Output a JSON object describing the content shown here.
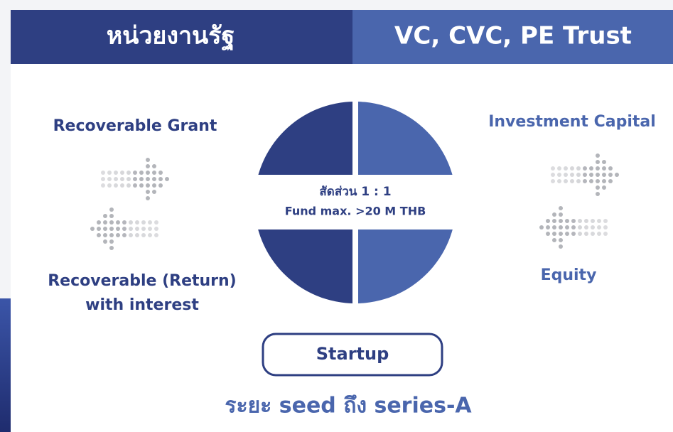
{
  "header": {
    "left": "หน่วยงานรัฐ",
    "right": "VC, CVC, PE Trust"
  },
  "left": {
    "top": "Recoverable Grant",
    "bottom": [
      "Recoverable (Return)",
      "with interest"
    ]
  },
  "right": {
    "top": "Investment Capital",
    "bottom": "Equity"
  },
  "center": {
    "ratio": "สัดส่วน 1 : 1",
    "fund": "Fund max. >20 M THB"
  },
  "startup": "Startup",
  "stage": "ระยะ seed ถึง series-A"
}
